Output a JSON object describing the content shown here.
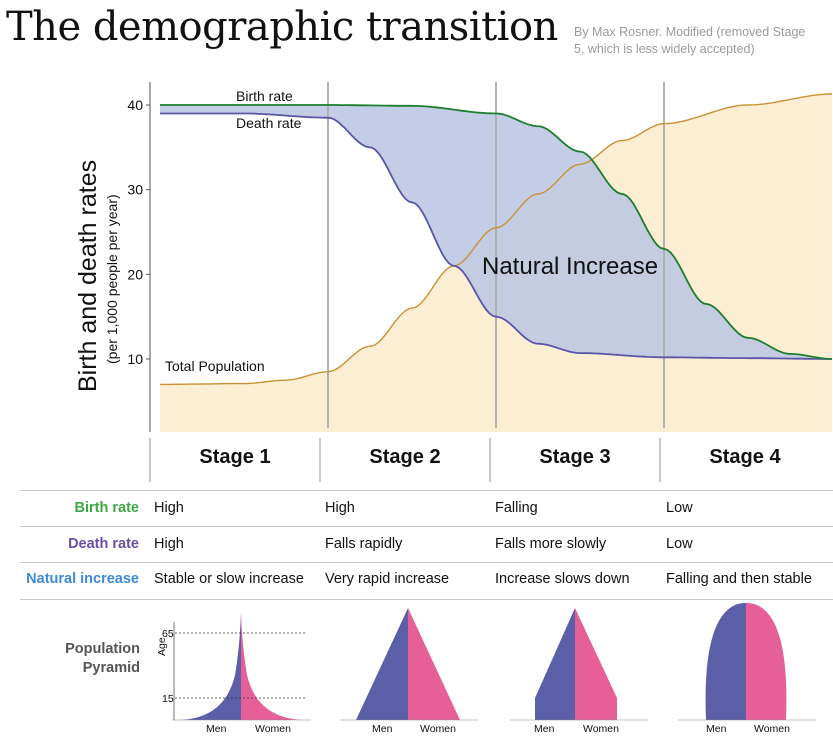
{
  "title": "The demographic transition",
  "credit": "By Max Rosner. Modified (removed Stage 5, which is less widely accepted)",
  "chart_data": {
    "type": "line",
    "ylabel": "Birth and death rates",
    "ylabel_sub": "(per 1,000 people per year)",
    "yticks": [
      10,
      20,
      30,
      40
    ],
    "ylim": [
      0,
      42
    ],
    "xlim": [
      0,
      4
    ],
    "series": [
      {
        "name": "Birth rate",
        "color": "#1e7d2e",
        "x": [
          0,
          0.5,
          1.0,
          1.5,
          2.0,
          2.25,
          2.5,
          2.75,
          3.0,
          3.25,
          3.5,
          3.75,
          4.0
        ],
        "y": [
          40,
          40,
          40,
          39.9,
          39.0,
          37.5,
          34.5,
          29.5,
          23.0,
          16.5,
          12.5,
          10.6,
          10.0
        ]
      },
      {
        "name": "Death rate",
        "color": "#5a55a8",
        "x": [
          0,
          0.5,
          1.0,
          1.25,
          1.5,
          1.75,
          2.0,
          2.25,
          2.5,
          3.0,
          3.5,
          4.0
        ],
        "y": [
          39,
          39,
          38.5,
          35.0,
          28.5,
          21.0,
          15.0,
          11.8,
          10.7,
          10.2,
          10.1,
          10.0
        ]
      },
      {
        "name": "Total Population",
        "color": "#c99235",
        "x": [
          0,
          0.5,
          0.75,
          1.0,
          1.25,
          1.5,
          1.75,
          2.0,
          2.25,
          2.5,
          2.75,
          3.0,
          3.5,
          4.0
        ],
        "y": [
          7.0,
          7.1,
          7.5,
          8.5,
          11.5,
          16.0,
          21.0,
          25.5,
          29.5,
          33.0,
          35.8,
          37.8,
          40.0,
          41.3
        ]
      }
    ],
    "annotation": "Natural Increase",
    "fill_colors": {
      "natural_increase": "#b9c6e2",
      "population": "#fbeed3"
    },
    "stage_lines": [
      1,
      2,
      3
    ]
  },
  "table": {
    "stages": [
      "Stage 1",
      "Stage 2",
      "Stage 3",
      "Stage 4"
    ],
    "rows": [
      {
        "label": "Birth rate",
        "color": "#3ea844",
        "values": [
          "High",
          "High",
          "Falling",
          "Low"
        ]
      },
      {
        "label": "Death rate",
        "color": "#6a4fa8",
        "values": [
          "High",
          "Falls rapidly",
          "Falls more slowly",
          "Low"
        ]
      },
      {
        "label": "Natural increase",
        "color": "#3d8ad6",
        "values": [
          "Stable or slow increase",
          "Very rapid increase",
          "Increase slows down",
          "Falling and then stable"
        ]
      }
    ],
    "pyramid_label": "Population Pyramid",
    "pyramid": {
      "men": "Men",
      "women": "Women",
      "age": "Age",
      "age_ticks": [
        "65",
        "15"
      ],
      "men_color": "#5a5fa8",
      "women_color": "#e65f96"
    }
  }
}
